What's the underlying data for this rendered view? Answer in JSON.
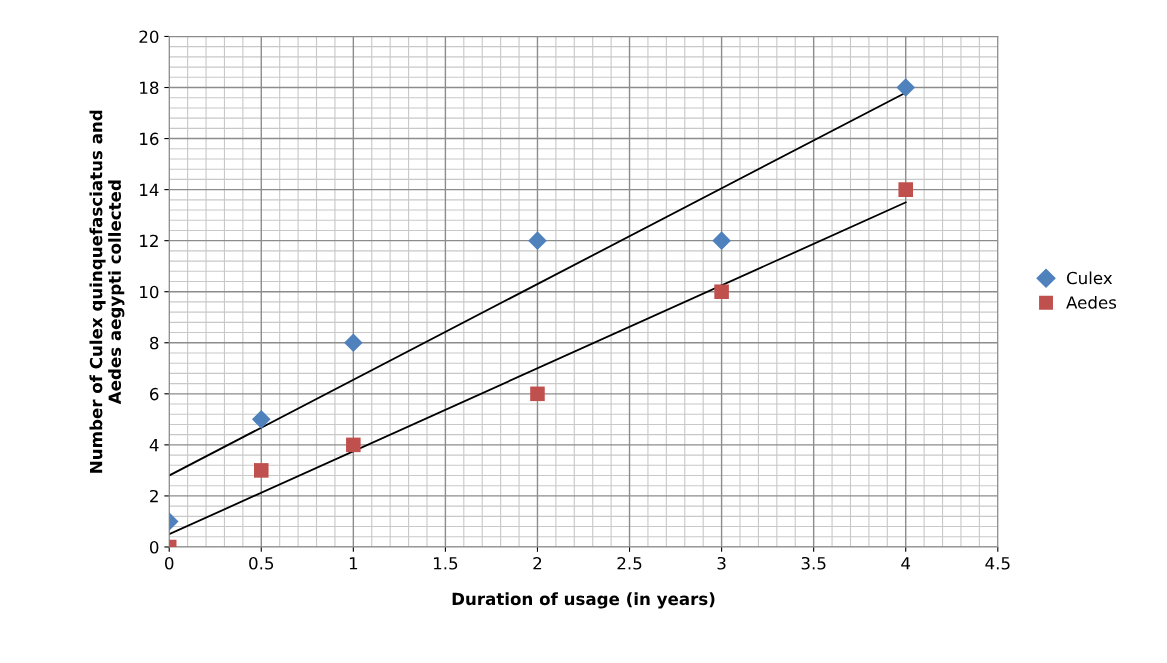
{
  "chart_data": {
    "type": "scatter",
    "xlabel": "Duration of usage (in years)",
    "ylabel": "Number of Culex quinquefasciatus and\nAedes aegypti collected",
    "xlim": [
      0,
      4.5
    ],
    "xticks": [
      0,
      0.5,
      1,
      1.5,
      2,
      2.5,
      3,
      3.5,
      4,
      4.5
    ],
    "ylim": [
      0,
      20
    ],
    "yticks": [
      0,
      2,
      4,
      6,
      8,
      10,
      12,
      14,
      16,
      18,
      20
    ],
    "grid": true,
    "legend": "right",
    "series": [
      {
        "name": "Culex",
        "color": "#4f81bd",
        "marker": "diamond",
        "x": [
          0,
          0.5,
          1,
          2,
          3,
          4
        ],
        "values": [
          1,
          5,
          8,
          12,
          12,
          18
        ]
      },
      {
        "name": "Aedes",
        "color": "#c0504d",
        "marker": "square",
        "x": [
          0,
          0.5,
          1,
          2,
          3,
          4
        ],
        "values": [
          0,
          3,
          4,
          6,
          10,
          14
        ]
      },
      {
        "type": "line",
        "color": "#000000",
        "marker": "none",
        "x": [
          0,
          4
        ],
        "values": [
          2.8,
          17.8
        ]
      },
      {
        "type": "line",
        "color": "#000000",
        "marker": "none",
        "x": [
          0,
          4
        ],
        "values": [
          0.5,
          13.5
        ]
      }
    ]
  }
}
